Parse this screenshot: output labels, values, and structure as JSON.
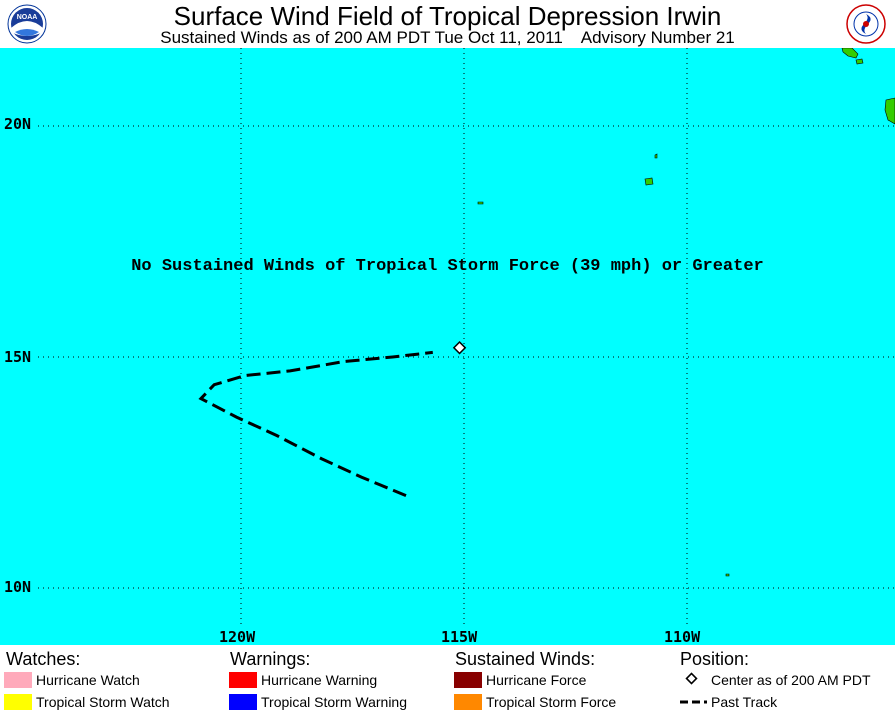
{
  "header": {
    "title": "Surface Wind Field of Tropical Depression Irwin",
    "subtitle": "Sustained Winds as of 200 AM PDT Tue Oct 11, 2011    Advisory Number 21",
    "left_logo_icon": "noaa-logo-icon",
    "right_logo_icon": "nws-logo-icon"
  },
  "map": {
    "ocean_color": "#00ffff",
    "land_color": "#33cc00",
    "notice": "No Sustained Winds of Tropical Storm Force (39 mph) or Greater",
    "latitude_labels": [
      "20N",
      "15N",
      "10N"
    ],
    "longitude_labels": [
      "120W",
      "115W",
      "110W"
    ],
    "past_track": [
      {
        "lon": -116.3,
        "lat": 12.0
      },
      {
        "lon": -117.3,
        "lat": 12.4
      },
      {
        "lon": -118.2,
        "lat": 12.8
      },
      {
        "lon": -119.2,
        "lat": 13.3
      },
      {
        "lon": -120.1,
        "lat": 13.7
      },
      {
        "lon": -120.9,
        "lat": 14.1
      },
      {
        "lon": -120.6,
        "lat": 14.4
      },
      {
        "lon": -119.9,
        "lat": 14.6
      },
      {
        "lon": -118.9,
        "lat": 14.7
      },
      {
        "lon": -117.7,
        "lat": 14.9
      },
      {
        "lon": -116.6,
        "lat": 15.0
      },
      {
        "lon": -115.7,
        "lat": 15.1
      }
    ],
    "current_position": {
      "lon": -115.1,
      "lat": 15.2
    }
  },
  "legend": {
    "watches": {
      "heading": "Watches:",
      "items": [
        {
          "label": "Hurricane Watch",
          "color": "#ffaabb"
        },
        {
          "label": "Tropical Storm Watch",
          "color": "#ffff00"
        }
      ]
    },
    "warnings": {
      "heading": "Warnings:",
      "items": [
        {
          "label": "Hurricane Warning",
          "color": "#ff0000"
        },
        {
          "label": "Tropical Storm Warning",
          "color": "#0000ff"
        }
      ]
    },
    "winds": {
      "heading": "Sustained Winds:",
      "items": [
        {
          "label": "Hurricane Force",
          "color": "#880000"
        },
        {
          "label": "Tropical Storm Force",
          "color": "#ff8800"
        }
      ]
    },
    "position": {
      "heading": "Position:",
      "center_label": "Center as of 200 AM PDT",
      "track_label": "Past Track"
    }
  }
}
